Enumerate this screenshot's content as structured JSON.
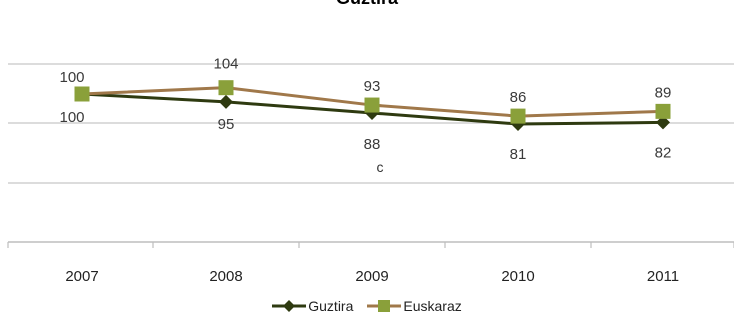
{
  "chart_data": {
    "type": "line",
    "title": "Guztira",
    "categories": [
      "2007",
      "2008",
      "2009",
      "2010",
      "2011"
    ],
    "ylim": [
      0,
      115
    ],
    "grid": true,
    "legend_position": "bottom",
    "series": [
      {
        "name": "Guztira",
        "values": [
          100,
          95,
          88,
          81,
          82
        ],
        "color": "#2e3a10",
        "marker": "diamond",
        "labels_position": "below"
      },
      {
        "name": "Euskaraz",
        "values": [
          100,
          104,
          93,
          86,
          89
        ],
        "color": "#a0784a",
        "marker_color": "#8aa03a",
        "marker": "square",
        "labels_position": "above"
      }
    ],
    "annotations": [
      {
        "text": "c",
        "category": "2009"
      }
    ]
  }
}
